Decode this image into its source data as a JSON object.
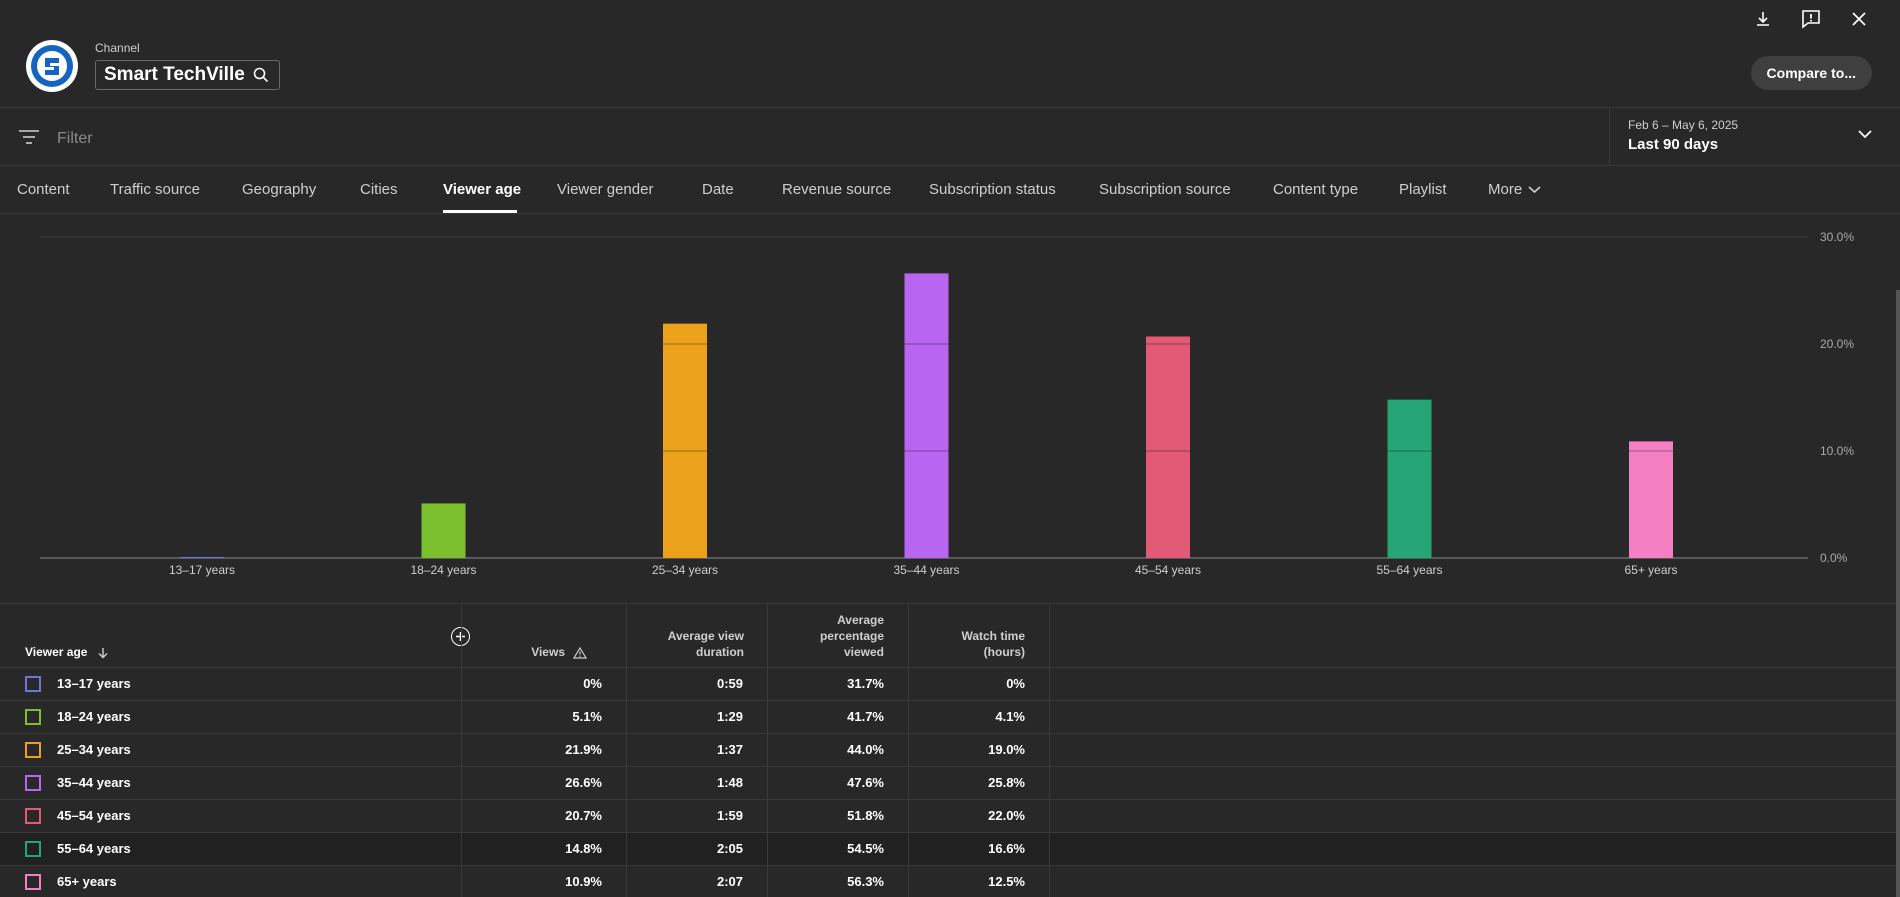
{
  "header": {
    "channel_label": "Channel",
    "channel_name": "Smart TechVille",
    "compare_label": "Compare to..."
  },
  "filter": {
    "placeholder": "Filter"
  },
  "date": {
    "range": "Feb 6 – May 6, 2025",
    "label": "Last 90 days"
  },
  "tabs": [
    {
      "label": "Content"
    },
    {
      "label": "Traffic source"
    },
    {
      "label": "Geography"
    },
    {
      "label": "Cities"
    },
    {
      "label": "Viewer age"
    },
    {
      "label": "Viewer gender"
    },
    {
      "label": "Date"
    },
    {
      "label": "Revenue source"
    },
    {
      "label": "Subscription status"
    },
    {
      "label": "Subscription source"
    },
    {
      "label": "Content type"
    },
    {
      "label": "Playlist"
    },
    {
      "label": "More"
    }
  ],
  "chart_data": {
    "type": "bar",
    "categories": [
      "13–17 years",
      "18–24 years",
      "25–34 years",
      "35–44 years",
      "45–54 years",
      "55–64 years",
      "65+ years"
    ],
    "values": [
      0,
      5.1,
      21.9,
      26.6,
      20.7,
      14.8,
      10.9
    ],
    "colors": [
      "#6f74d6",
      "#7cbf2f",
      "#eba21a",
      "#b865f2",
      "#e25a76",
      "#26a676",
      "#f47fc2"
    ],
    "ylim": [
      0,
      30
    ],
    "y_ticks": [
      "0.0%",
      "10.0%",
      "20.0%",
      "30.0%"
    ],
    "grid": true
  },
  "table": {
    "headers": {
      "age": "Viewer age",
      "views": "Views",
      "avg_view_duration_1": "Average view",
      "avg_view_duration_2": "duration",
      "avg_pct_1": "Average",
      "avg_pct_2": "percentage",
      "avg_pct_3": "viewed",
      "watch_1": "Watch time",
      "watch_2": "(hours)"
    },
    "rows": [
      {
        "age": "13–17 years",
        "views": "0%",
        "duration": "0:59",
        "pct": "31.7%",
        "watch": "0%",
        "color": "#6f74d6"
      },
      {
        "age": "18–24 years",
        "views": "5.1%",
        "duration": "1:29",
        "pct": "41.7%",
        "watch": "4.1%",
        "color": "#7cbf2f"
      },
      {
        "age": "25–34 years",
        "views": "21.9%",
        "duration": "1:37",
        "pct": "44.0%",
        "watch": "19.0%",
        "color": "#eba21a"
      },
      {
        "age": "35–44 years",
        "views": "26.6%",
        "duration": "1:48",
        "pct": "47.6%",
        "watch": "25.8%",
        "color": "#b865f2"
      },
      {
        "age": "45–54 years",
        "views": "20.7%",
        "duration": "1:59",
        "pct": "51.8%",
        "watch": "22.0%",
        "color": "#e25a76"
      },
      {
        "age": "55–64 years",
        "views": "14.8%",
        "duration": "2:05",
        "pct": "54.5%",
        "watch": "16.6%",
        "color": "#26a676"
      },
      {
        "age": "65+ years",
        "views": "10.9%",
        "duration": "2:07",
        "pct": "56.3%",
        "watch": "12.5%",
        "color": "#f47fc2"
      }
    ]
  }
}
